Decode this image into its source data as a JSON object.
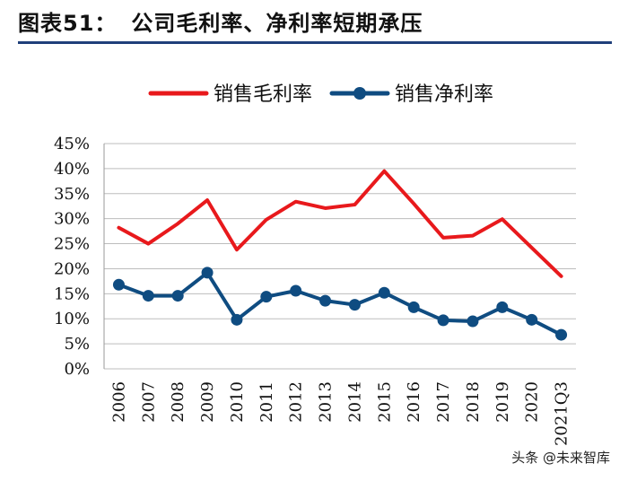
{
  "figure": {
    "label": "图表51：",
    "title": "公司毛利率、净利率短期承压"
  },
  "chart_data": {
    "type": "line",
    "title": "公司毛利率、净利率短期承压",
    "categories": [
      "2006",
      "2007",
      "2008",
      "2009",
      "2010",
      "2011",
      "2012",
      "2013",
      "2014",
      "2015",
      "2016",
      "2017",
      "2018",
      "2019",
      "2020",
      "2021Q3"
    ],
    "series": [
      {
        "name": "销售毛利率",
        "color": "#e8191c",
        "marker": "none",
        "values": [
          28.2,
          25.0,
          29.0,
          33.7,
          23.8,
          29.8,
          33.4,
          32.1,
          32.8,
          39.5,
          33.0,
          26.2,
          26.6,
          29.9,
          24.2,
          18.5
        ]
      },
      {
        "name": "销售净利率",
        "color": "#0f4c81",
        "marker": "circle",
        "values": [
          16.8,
          14.6,
          14.6,
          19.2,
          9.8,
          14.4,
          15.6,
          13.6,
          12.8,
          15.2,
          12.3,
          9.7,
          9.5,
          12.3,
          9.8,
          6.8
        ]
      }
    ],
    "yticks": [
      "0%",
      "5%",
      "10%",
      "15%",
      "20%",
      "25%",
      "30%",
      "35%",
      "40%",
      "45%"
    ],
    "ylim": [
      0,
      45
    ],
    "xlabel": "",
    "ylabel": "",
    "grid": true,
    "legend_position": "top-center"
  },
  "watermark": "头条 @未来智库"
}
